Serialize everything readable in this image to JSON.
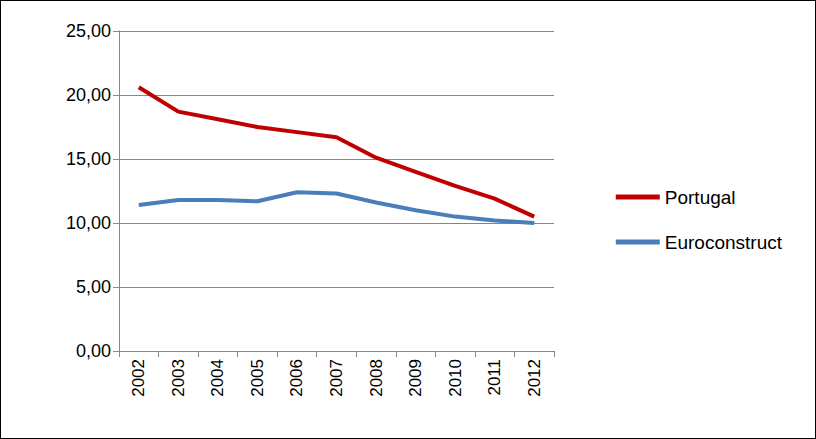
{
  "chart_data": {
    "type": "line",
    "categories": [
      "2002",
      "2003",
      "2004",
      "2005",
      "2006",
      "2007",
      "2008",
      "2009",
      "2010",
      "2011",
      "2012"
    ],
    "series": [
      {
        "name": "Portugal",
        "color": "#c00000",
        "values": [
          20.6,
          18.7,
          18.1,
          17.5,
          17.1,
          16.7,
          15.1,
          14.0,
          12.9,
          11.9,
          10.5
        ]
      },
      {
        "name": "Euroconstruct",
        "color": "#4a7ebb",
        "values": [
          11.4,
          11.8,
          11.8,
          11.7,
          12.4,
          12.3,
          11.6,
          11.0,
          10.5,
          10.2,
          10.0
        ]
      }
    ],
    "ylim": [
      0,
      25
    ],
    "yticks": [
      {
        "value": 0,
        "label": "0,00"
      },
      {
        "value": 5,
        "label": "5,00"
      },
      {
        "value": 10,
        "label": "10,00"
      },
      {
        "value": 15,
        "label": "15,00"
      },
      {
        "value": 20,
        "label": "20,00"
      },
      {
        "value": 25,
        "label": "25,00"
      }
    ],
    "grid": true,
    "legend": "right"
  }
}
